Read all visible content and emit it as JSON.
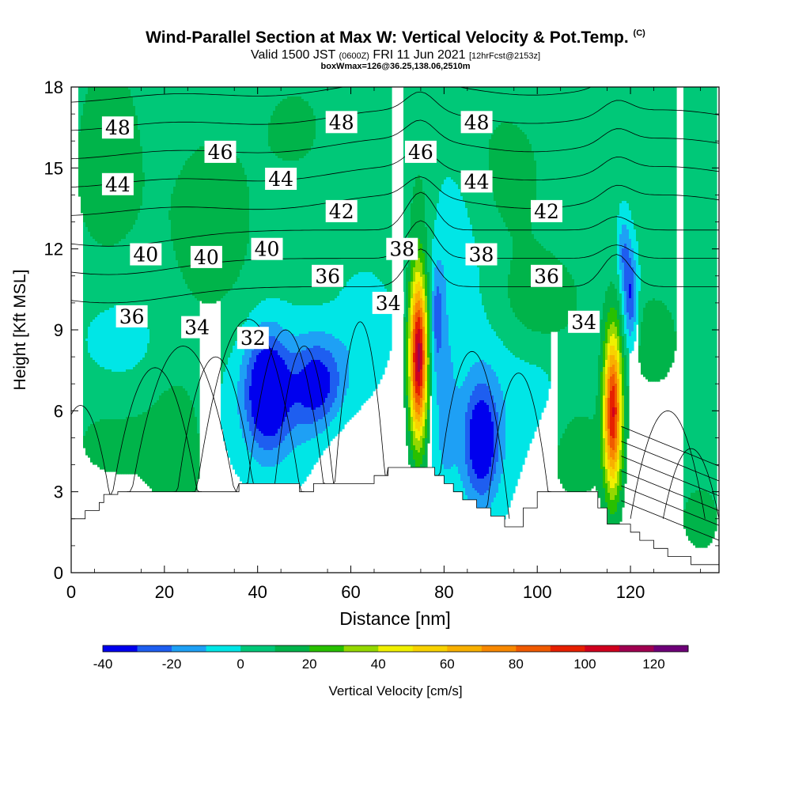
{
  "chart_data": {
    "type": "heatmap",
    "title": "Wind-Parallel Section at Max W: Vertical Velocity & Pot.Temp.",
    "title_suffix": "(C)",
    "subtitle_parts": [
      "Valid 1500 JST",
      "(0600Z)",
      "FRI 11 Jun 2021",
      "[12hrFcst@2153z]"
    ],
    "subtitle2": "boxWmax=126@36.25,138.06,2510m",
    "xlabel": "Distance [nm]",
    "ylabel": "Height [Kft MSL]",
    "xlim": [
      0,
      139
    ],
    "ylim": [
      0,
      18
    ],
    "x_ticks": [
      "0",
      "20",
      "40",
      "60",
      "80",
      "100",
      "120"
    ],
    "y_ticks": [
      "0",
      "3",
      "6",
      "9",
      "12",
      "15",
      "18"
    ],
    "colorbar": {
      "label": "Vertical Velocity [cm/s]",
      "levels": [
        -40,
        -30,
        -20,
        -10,
        0,
        10,
        20,
        30,
        40,
        50,
        60,
        70,
        80,
        90,
        100,
        110,
        120,
        130
      ],
      "colors": [
        "#0000ee",
        "#1e5ef0",
        "#1ea0f5",
        "#00e6e6",
        "#00c878",
        "#00b44a",
        "#28c000",
        "#94d800",
        "#f0f000",
        "#f8d200",
        "#f8b000",
        "#f88800",
        "#f05a00",
        "#e62000",
        "#d0001e",
        "#a00050",
        "#6e0078"
      ],
      "tick_labels": [
        "-40",
        "-20",
        "0",
        "20",
        "40",
        "60",
        "80",
        "100",
        "120"
      ]
    },
    "potential_temperature_contour_labels_C": [
      {
        "value": "48",
        "x": 10,
        "y": 16.5
      },
      {
        "value": "48",
        "x": 58,
        "y": 16.7
      },
      {
        "value": "48",
        "x": 87,
        "y": 16.7
      },
      {
        "value": "46",
        "x": 32,
        "y": 15.6
      },
      {
        "value": "46",
        "x": 75,
        "y": 15.6
      },
      {
        "value": "44",
        "x": 10,
        "y": 14.4
      },
      {
        "value": "44",
        "x": 45,
        "y": 14.6
      },
      {
        "value": "44",
        "x": 87,
        "y": 14.5
      },
      {
        "value": "42",
        "x": 58,
        "y": 13.4
      },
      {
        "value": "42",
        "x": 102,
        "y": 13.4
      },
      {
        "value": "40",
        "x": 16,
        "y": 11.8
      },
      {
        "value": "40",
        "x": 29,
        "y": 11.7
      },
      {
        "value": "40",
        "x": 42,
        "y": 12.0
      },
      {
        "value": "38",
        "x": 71,
        "y": 12.0
      },
      {
        "value": "38",
        "x": 88,
        "y": 11.8
      },
      {
        "value": "36",
        "x": 13,
        "y": 9.5
      },
      {
        "value": "36",
        "x": 55,
        "y": 11.0
      },
      {
        "value": "36",
        "x": 102,
        "y": 11.0
      },
      {
        "value": "34",
        "x": 27,
        "y": 9.1
      },
      {
        "value": "34",
        "x": 68,
        "y": 10.0
      },
      {
        "value": "34",
        "x": 110,
        "y": 9.3
      },
      {
        "value": "32",
        "x": 39,
        "y": 8.7
      }
    ],
    "vertical_velocity_features": [
      {
        "type": "updraft",
        "x": 74.5,
        "y": 8.0,
        "max_cm_s": 126
      },
      {
        "type": "updraft",
        "x": 116.5,
        "y": 6.0,
        "max_cm_s": 110
      },
      {
        "type": "downdraft",
        "x": 42,
        "y": 6.8,
        "min_cm_s": -40
      },
      {
        "type": "downdraft",
        "x": 53,
        "y": 7.0,
        "min_cm_s": -30
      },
      {
        "type": "downdraft",
        "x": 88,
        "y": 4.8,
        "min_cm_s": -30
      },
      {
        "type": "downdraft",
        "x": 120,
        "y": 10.2,
        "min_cm_s": -30
      }
    ],
    "terrain_kft": [
      [
        0,
        2.0
      ],
      [
        3,
        2.0
      ],
      [
        3,
        2.3
      ],
      [
        6,
        2.3
      ],
      [
        6,
        2.6
      ],
      [
        7,
        2.6
      ],
      [
        7,
        2.9
      ],
      [
        10,
        2.9
      ],
      [
        10,
        3.0
      ],
      [
        36,
        3.0
      ],
      [
        36,
        3.3
      ],
      [
        49,
        3.3
      ],
      [
        49,
        3.0
      ],
      [
        52,
        3.0
      ],
      [
        52,
        3.3
      ],
      [
        65,
        3.3
      ],
      [
        65,
        3.6
      ],
      [
        68,
        3.6
      ],
      [
        68,
        3.9
      ],
      [
        78,
        3.9
      ],
      [
        78,
        3.6
      ],
      [
        80,
        3.6
      ],
      [
        80,
        3.3
      ],
      [
        82,
        3.3
      ],
      [
        82,
        3.0
      ],
      [
        84,
        3.0
      ],
      [
        84,
        2.7
      ],
      [
        87,
        2.7
      ],
      [
        87,
        2.4
      ],
      [
        90,
        2.4
      ],
      [
        90,
        2.1
      ],
      [
        93,
        2.1
      ],
      [
        93,
        1.7
      ],
      [
        97,
        1.7
      ],
      [
        97,
        2.4
      ],
      [
        100,
        2.4
      ],
      [
        100,
        3.0
      ],
      [
        113,
        3.0
      ],
      [
        113,
        2.4
      ],
      [
        115,
        2.4
      ],
      [
        115,
        1.8
      ],
      [
        120,
        1.8
      ],
      [
        120,
        1.5
      ],
      [
        122,
        1.5
      ],
      [
        122,
        1.2
      ],
      [
        125,
        1.2
      ],
      [
        125,
        0.9
      ],
      [
        128,
        0.9
      ],
      [
        128,
        0.6
      ],
      [
        133,
        0.6
      ],
      [
        133,
        0.3
      ],
      [
        139,
        0.3
      ]
    ]
  }
}
